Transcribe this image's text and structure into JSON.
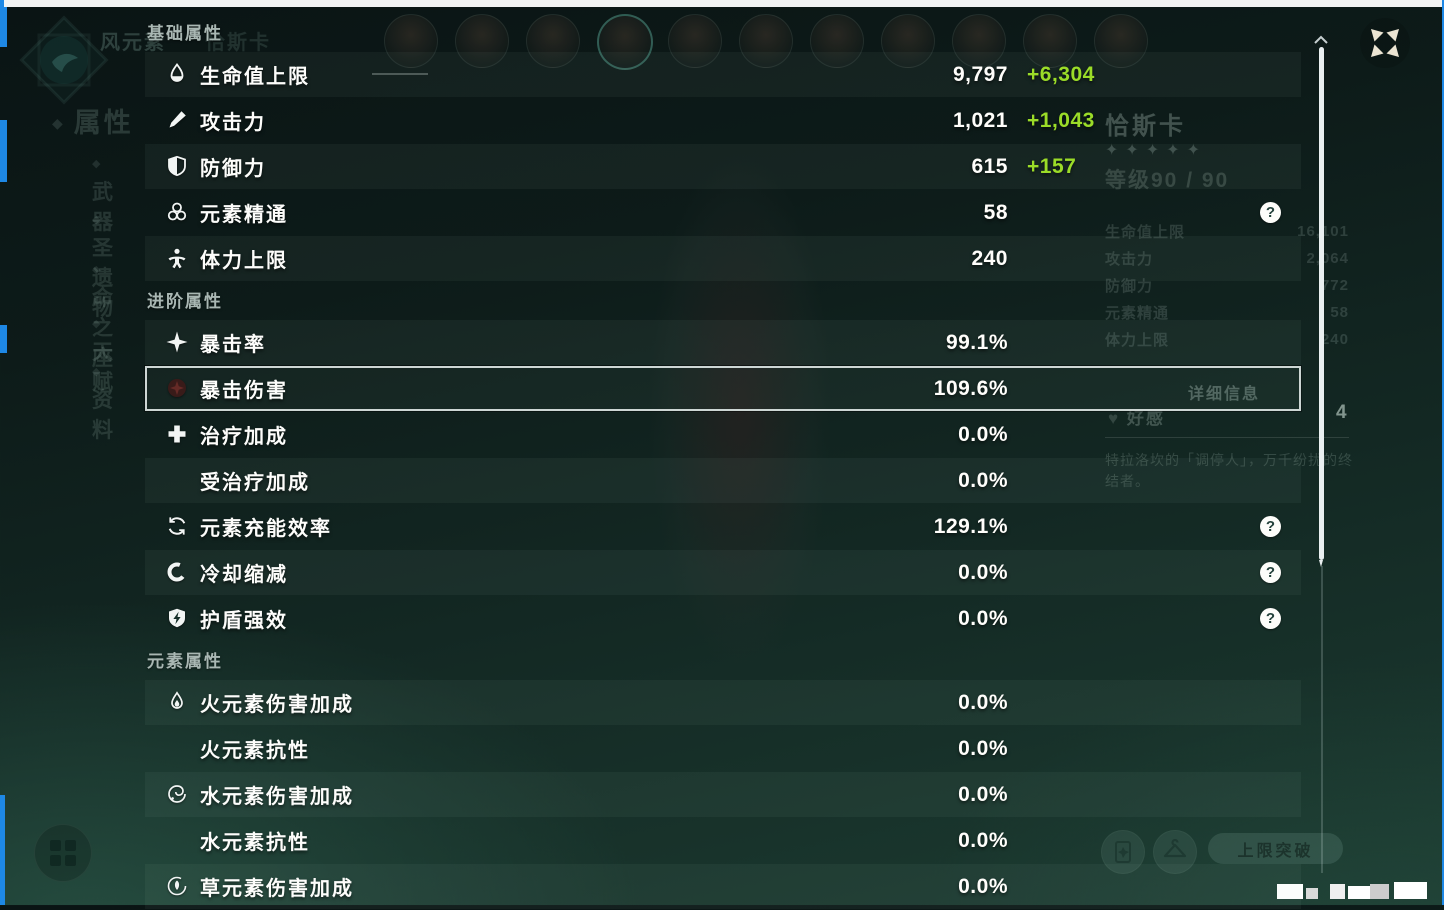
{
  "overlay": {
    "sections": [
      {
        "title": "基础属性",
        "rows": [
          {
            "icon": "hp-icon",
            "label": "生命值上限",
            "value": "9,797",
            "bonus": "+6,304",
            "help": false,
            "shaded": true
          },
          {
            "icon": "atk-icon",
            "label": "攻击力",
            "value": "1,021",
            "bonus": "+1,043",
            "help": false,
            "shaded": false
          },
          {
            "icon": "def-icon",
            "label": "防御力",
            "value": "615",
            "bonus": "+157",
            "help": false,
            "shaded": true
          },
          {
            "icon": "elemental-mastery-icon",
            "label": "元素精通",
            "value": "58",
            "bonus": null,
            "help": true,
            "shaded": false
          },
          {
            "icon": "stamina-icon",
            "label": "体力上限",
            "value": "240",
            "bonus": null,
            "help": false,
            "shaded": true
          }
        ]
      },
      {
        "title": "进阶属性",
        "rows": [
          {
            "icon": "crit-rate-icon",
            "label": "暴击率",
            "value": "99.1%",
            "bonus": null,
            "help": false,
            "shaded": true
          },
          {
            "icon": "crit-dmg-icon",
            "label": "暴击伤害",
            "value": "109.6%",
            "bonus": null,
            "help": false,
            "shaded": false,
            "selected": true
          },
          {
            "icon": "healing-bonus-icon",
            "label": "治疗加成",
            "value": "0.0%",
            "bonus": null,
            "help": false,
            "shaded": false
          },
          {
            "icon": null,
            "label": "受治疗加成",
            "value": "0.0%",
            "bonus": null,
            "help": false,
            "shaded": true
          },
          {
            "icon": "energy-recharge-icon",
            "label": "元素充能效率",
            "value": "129.1%",
            "bonus": null,
            "help": true,
            "shaded": false
          },
          {
            "icon": "cooldown-icon",
            "label": "冷却缩减",
            "value": "0.0%",
            "bonus": null,
            "help": true,
            "shaded": true
          },
          {
            "icon": "shield-strength-icon",
            "label": "护盾强效",
            "value": "0.0%",
            "bonus": null,
            "help": true,
            "shaded": false
          }
        ]
      },
      {
        "title": "元素属性",
        "rows": [
          {
            "icon": "pyro-icon",
            "label": "火元素伤害加成",
            "value": "0.0%",
            "bonus": null,
            "help": false,
            "shaded": true
          },
          {
            "icon": null,
            "label": "火元素抗性",
            "value": "0.0%",
            "bonus": null,
            "help": false,
            "shaded": false
          },
          {
            "icon": "hydro-icon",
            "label": "水元素伤害加成",
            "value": "0.0%",
            "bonus": null,
            "help": false,
            "shaded": true
          },
          {
            "icon": null,
            "label": "水元素抗性",
            "value": "0.0%",
            "bonus": null,
            "help": false,
            "shaded": false
          },
          {
            "icon": "dendro-icon",
            "label": "草元素伤害加成",
            "value": "0.0%",
            "bonus": null,
            "help": false,
            "shaded": true
          }
        ]
      }
    ]
  },
  "background": {
    "element_label": "风元素",
    "character_name_top": "恰斯卡",
    "nav_tab": "属性",
    "menu_items": [
      "武器",
      "圣遗物",
      "命之座",
      "天赋",
      "资料"
    ],
    "party_avatars": {
      "count": 11,
      "selected_index": 3
    },
    "info_panel": {
      "name": "恰斯卡",
      "stars": "✦✦✦✦✦",
      "level_label": "等级90 / 90",
      "stats": [
        {
          "label": "生命值上限",
          "value": "16,101"
        },
        {
          "label": "攻击力",
          "value": "2,064"
        },
        {
          "label": "防御力",
          "value": "772"
        },
        {
          "label": "元素精通",
          "value": "58"
        },
        {
          "label": "体力上限",
          "value": "240"
        }
      ],
      "details_label": "详细信息",
      "friendship_label": "好感",
      "friendship_value": "4",
      "description": "特拉洛坎的「调停人」，万千纷扰的终结者。"
    },
    "breakthrough_label": "上限突破"
  },
  "colors": {
    "bonus_green": "#9bdc28",
    "select_border": "#cdd6d4",
    "edge_blue": "#1e88e5",
    "close_icon": "#ece5d3",
    "scrollbar": "#e9eff0"
  }
}
